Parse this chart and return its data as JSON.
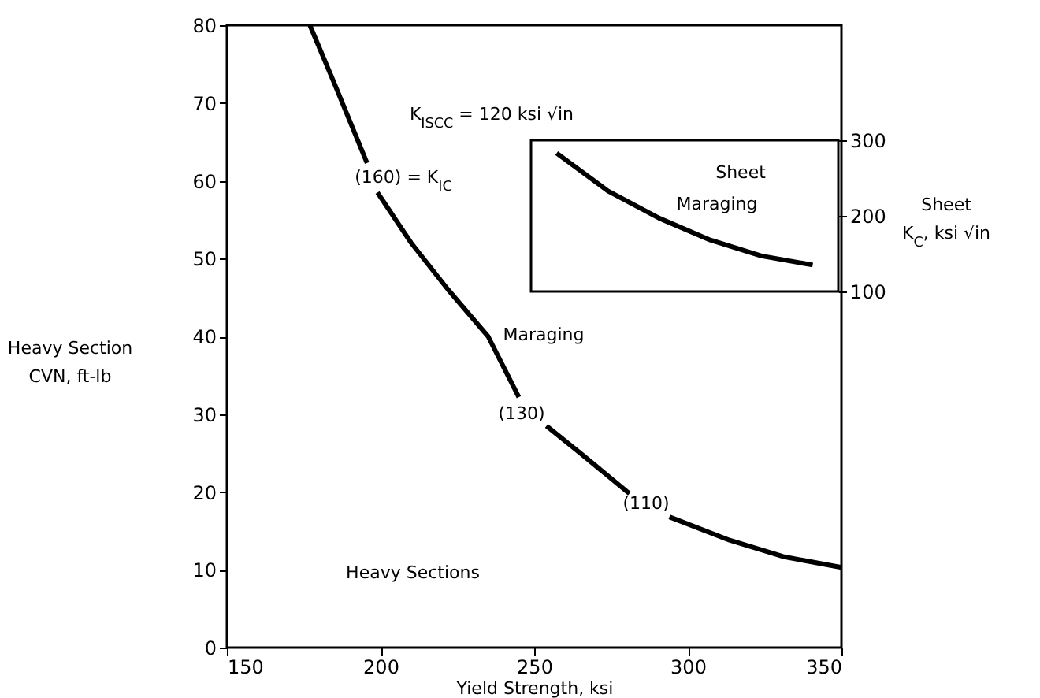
{
  "chart_data": [
    {
      "type": "line",
      "xlabel": "Yield Strength, ksi",
      "ylabel": "Heavy Section\nCVN, ft-lb",
      "xlim": [
        150,
        350
      ],
      "xticks": [
        150,
        200,
        250,
        300,
        350
      ],
      "ylim": [
        0,
        80
      ],
      "yticks": [
        0,
        10,
        20,
        30,
        40,
        50,
        60,
        70,
        80
      ],
      "series": [
        {
          "color": "#000000",
          "x": [
            177,
            185,
            195.6,
            197,
            199,
            210,
            222,
            235,
            245,
            250,
            254,
            265,
            281,
            288,
            294,
            313.6,
            331,
            350
          ],
          "values": [
            80,
            72.5,
            62.3,
            null,
            58.5,
            52,
            46,
            40,
            32.2,
            null,
            28.5,
            25,
            19.8,
            null,
            16.8,
            13.8,
            11.7,
            10.3
          ]
        }
      ],
      "annotations": [
        "K$_{ISCC}$ = 120 ksi √in",
        "(160) = K$_{IC}$",
        "Maraging",
        "(130)",
        "(110)",
        "Heavy Sections"
      ]
    },
    {
      "type": "line",
      "ylabel": "Sheet\nK$_{C}$, ksi √in",
      "categories": [
        null,
        null,
        null,
        null,
        null,
        null
      ],
      "ylim": [
        100,
        300
      ],
      "yticks": [
        100,
        200,
        300
      ],
      "series": [
        {
          "color": "#000000",
          "values": [
            283,
            233,
            197,
            168,
            147,
            135
          ]
        }
      ],
      "annotations": [
        "Sheet",
        "Maraging"
      ]
    }
  ]
}
